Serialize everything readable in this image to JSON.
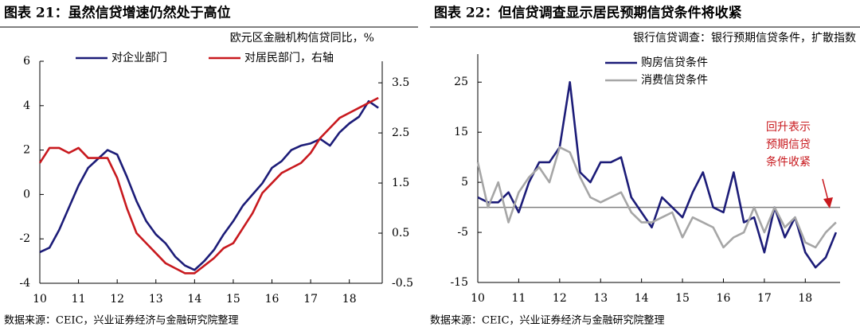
{
  "chart_data": [
    {
      "type": "line",
      "title": "图表 21：虽然信贷增速仍然处于高位",
      "subtitle": "欧元区金融机构信贷同比，%",
      "source": "数据来源：CEIC，兴业证券经济与金融研究院整理",
      "x": [
        10,
        10.25,
        10.5,
        10.75,
        11,
        11.25,
        11.5,
        11.75,
        12,
        12.25,
        12.5,
        12.75,
        13,
        13.25,
        13.5,
        13.75,
        14,
        14.25,
        14.5,
        14.75,
        15,
        15.25,
        15.5,
        15.75,
        16,
        16.25,
        16.5,
        16.75,
        17,
        17.25,
        17.5,
        17.75,
        18,
        18.25,
        18.5,
        18.75
      ],
      "xlim": [
        10,
        18.85
      ],
      "xticks": [
        10,
        11,
        12,
        13,
        14,
        15,
        16,
        17,
        18
      ],
      "ylim": [
        -4,
        6
      ],
      "yticks": [
        -4,
        -2,
        0,
        2,
        4,
        6
      ],
      "y2lim": [
        -0.5,
        3.93
      ],
      "y2ticks": [
        -0.5,
        0.5,
        1.5,
        2.5,
        3.5
      ],
      "legend": "top",
      "grid": false,
      "zero_line": false,
      "series": [
        {
          "name": "对企业部门",
          "color": "#1c1c78",
          "values": [
            -2.6,
            -2.4,
            -1.6,
            -0.6,
            0.4,
            1.2,
            1.6,
            2.0,
            1.8,
            0.8,
            -0.3,
            -1.2,
            -1.8,
            -2.2,
            -2.8,
            -3.2,
            -3.4,
            -3.0,
            -2.5,
            -1.8,
            -1.2,
            -0.5,
            0.0,
            0.5,
            1.2,
            1.5,
            2.0,
            2.2,
            2.3,
            2.5,
            2.2,
            2.8,
            3.2,
            3.5,
            4.2,
            3.9
          ]
        },
        {
          "name": "对居民部门，右轴",
          "color": "#c8191e",
          "axis": "y2",
          "values": [
            1.9,
            2.2,
            2.2,
            2.1,
            2.2,
            2.0,
            2.0,
            2.0,
            1.6,
            1.0,
            0.5,
            0.3,
            0.1,
            -0.1,
            -0.2,
            -0.3,
            -0.3,
            -0.15,
            0.0,
            0.2,
            0.3,
            0.6,
            0.9,
            1.3,
            1.5,
            1.7,
            1.8,
            1.9,
            2.1,
            2.4,
            2.6,
            2.8,
            2.9,
            3.0,
            3.1,
            3.2
          ]
        }
      ]
    },
    {
      "type": "line",
      "title": "图表 22：但信贷调查显示居民预期信贷条件将收紧",
      "subtitle": "银行信贷调查：银行预期信贷条件，扩散指数",
      "source": "数据来源：CEIC，兴业证券经济与金融研究院整理",
      "annotation": [
        "回升表示",
        "预期信贷",
        "条件收紧"
      ],
      "x": [
        10,
        10.25,
        10.5,
        10.75,
        11,
        11.25,
        11.5,
        11.75,
        12,
        12.25,
        12.5,
        12.75,
        13,
        13.25,
        13.5,
        13.75,
        14,
        14.25,
        14.5,
        14.75,
        15,
        15.25,
        15.5,
        15.75,
        16,
        16.25,
        16.5,
        16.75,
        17,
        17.25,
        17.5,
        17.75,
        18,
        18.25,
        18.5,
        18.75
      ],
      "xlim": [
        10,
        18.85
      ],
      "xticks": [
        10,
        11,
        12,
        13,
        14,
        15,
        16,
        17,
        18
      ],
      "ylim": [
        -15,
        30.6
      ],
      "yticks": [
        -15,
        -5,
        5,
        15,
        25
      ],
      "legend": "top-left",
      "grid": false,
      "zero_line": true,
      "series": [
        {
          "name": "购房信贷条件",
          "color": "#1c1c78",
          "values": [
            2,
            1,
            1,
            3,
            -1,
            5,
            9,
            9,
            12,
            25,
            7,
            5,
            9,
            9,
            10,
            2,
            -1,
            -4,
            2,
            0,
            -2,
            3,
            7,
            0,
            -1,
            7,
            -3,
            -2,
            -9,
            0,
            -6,
            -2,
            -9,
            -12,
            -10,
            -5
          ]
        },
        {
          "name": "消费信贷条件",
          "color": "#a6a6a6",
          "values": [
            9,
            0,
            5,
            -3,
            3,
            6,
            8,
            5,
            12,
            11,
            6,
            2,
            1,
            2,
            3,
            -1,
            -3,
            -3,
            -2,
            -1,
            -6,
            -2,
            -3,
            -4,
            -8,
            -6,
            -5,
            0,
            -5,
            0,
            -4,
            -2,
            -7,
            -8,
            -5,
            -3
          ]
        }
      ]
    }
  ]
}
